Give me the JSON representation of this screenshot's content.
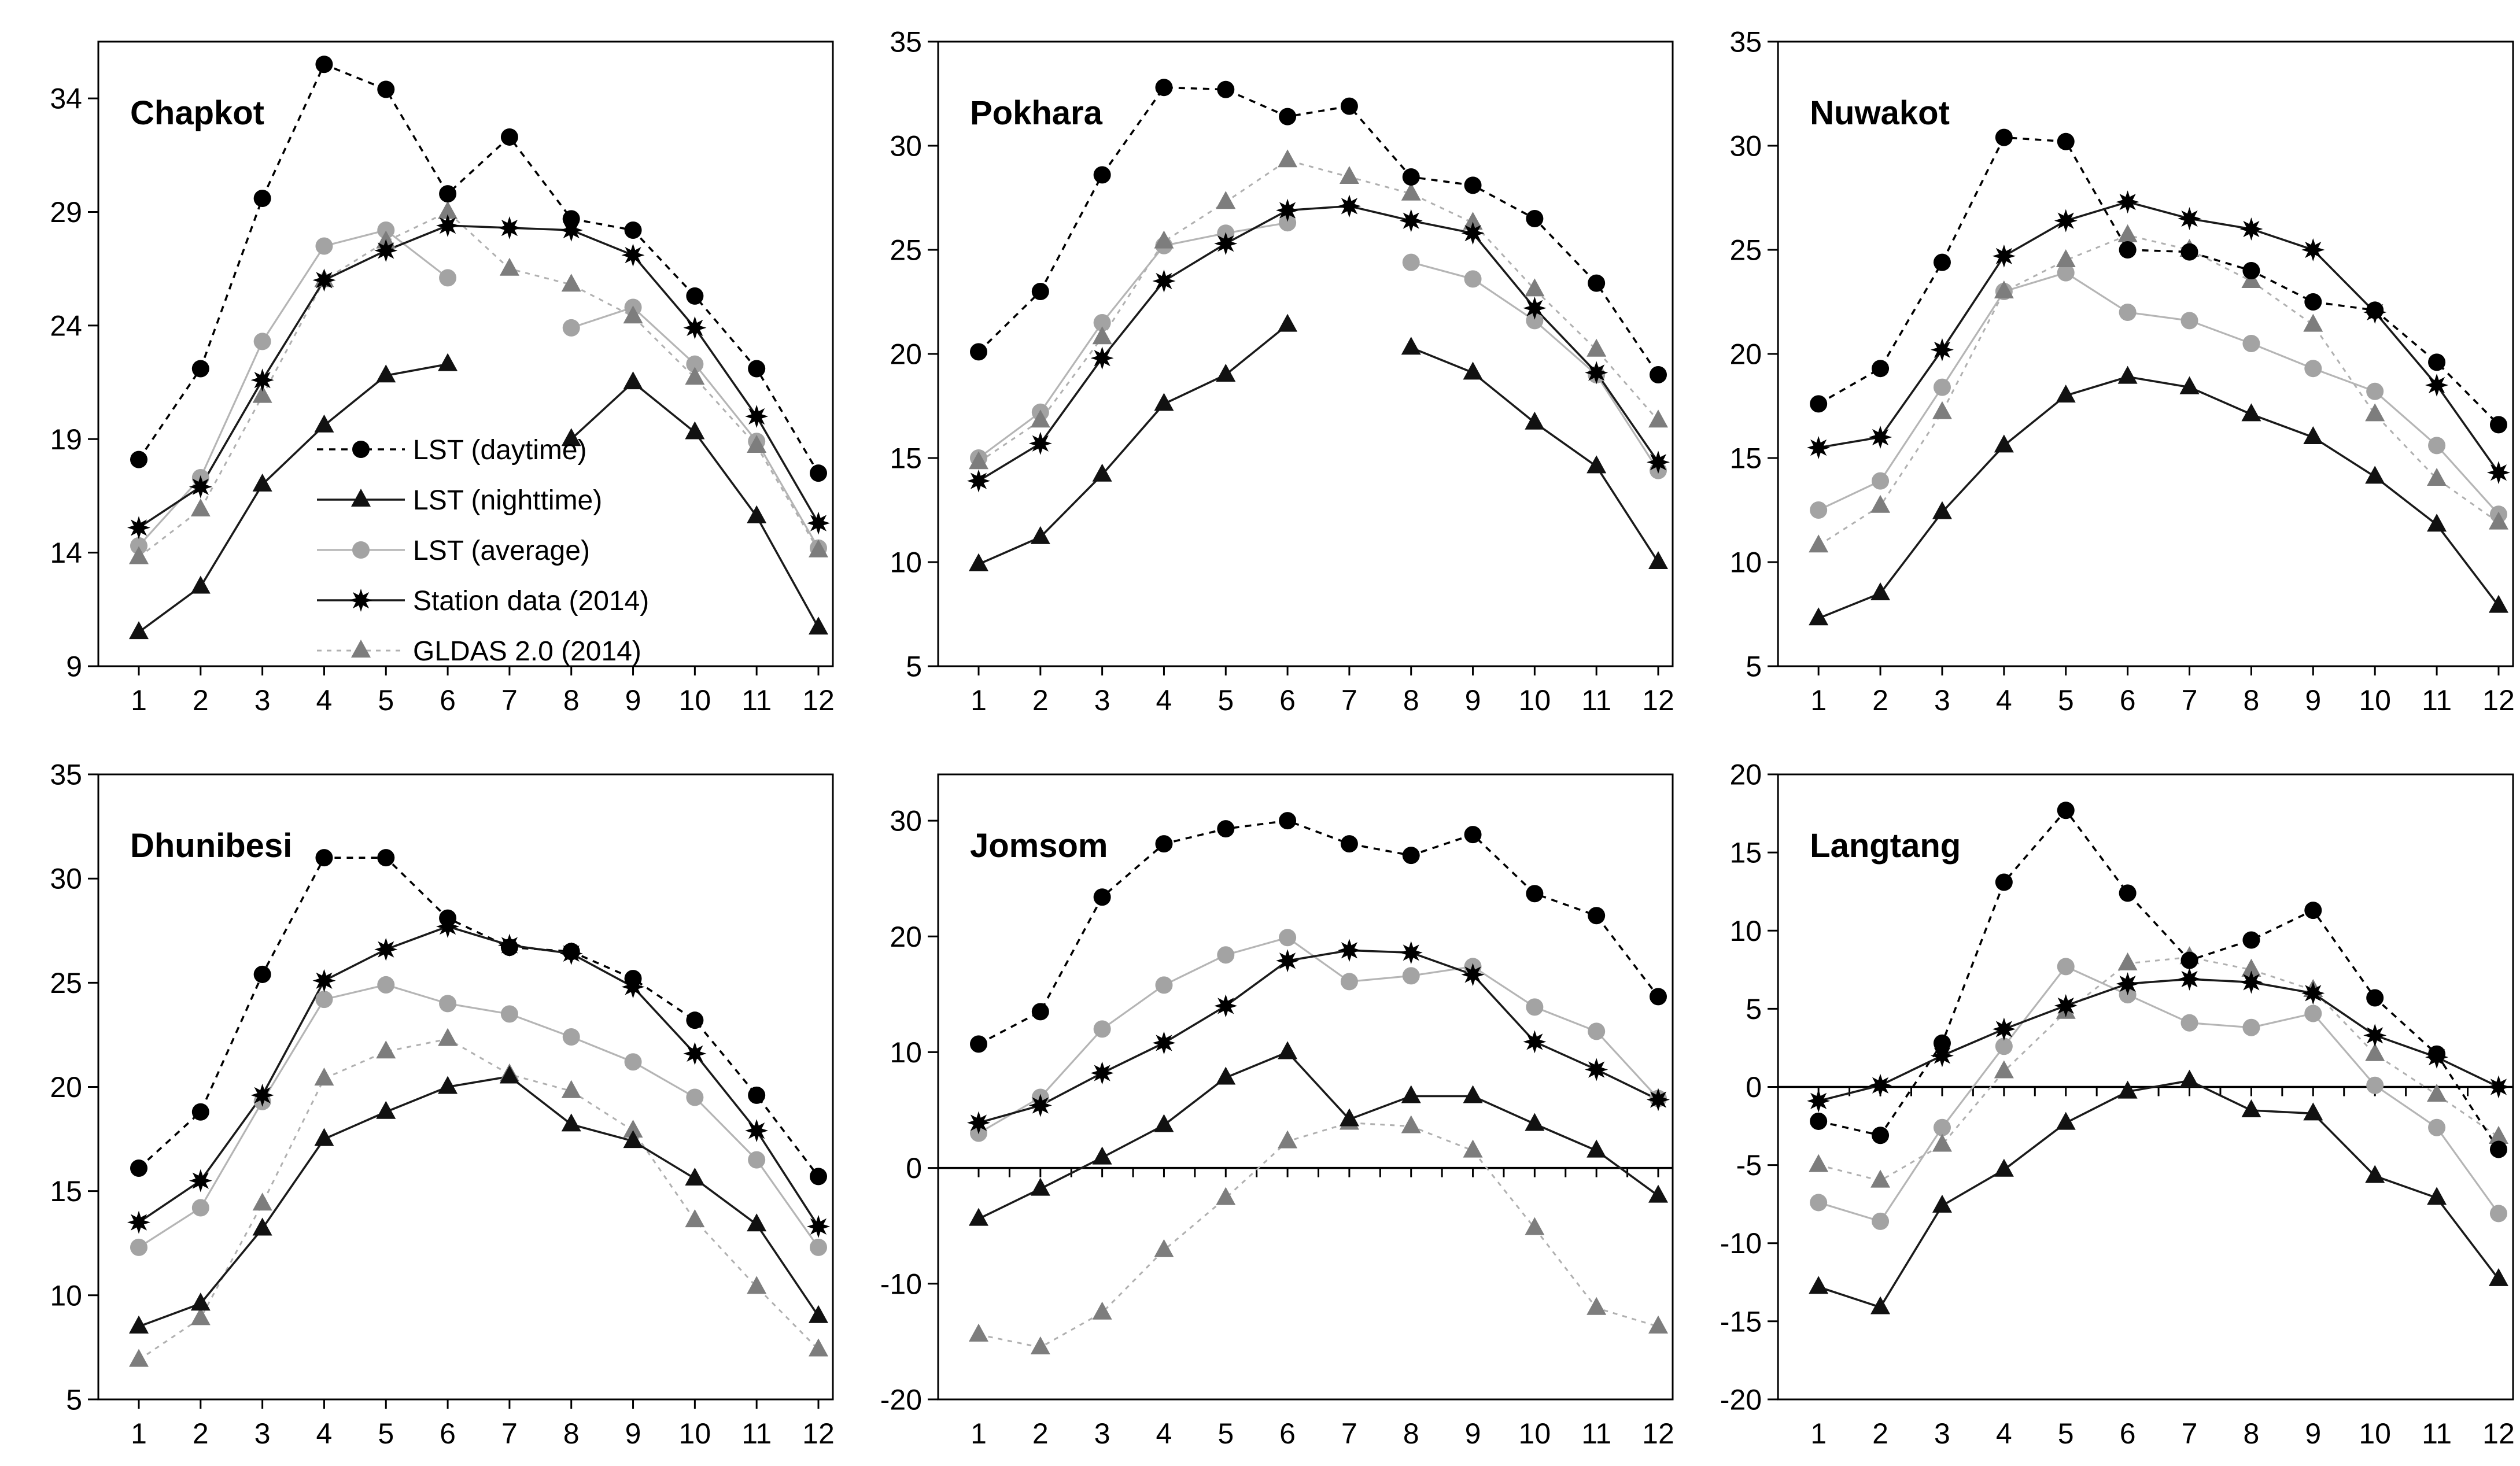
{
  "figure": {
    "background": "#ffffff",
    "rows": 2,
    "cols": 3
  },
  "legend": {
    "position": "inside-first-panel",
    "items": [
      {
        "series": "daytime",
        "label": "LST (daytime)"
      },
      {
        "series": "nighttime",
        "label": "LST (nighttime)"
      },
      {
        "series": "average",
        "label": "LST (average)"
      },
      {
        "series": "station",
        "label": "Station data (2014)"
      },
      {
        "series": "gldas",
        "label": "GLDAS 2.0 (2014)"
      }
    ]
  },
  "series_styles": {
    "daytime": {
      "line_color": "#000000",
      "line": "dashed",
      "marker": "circle",
      "marker_color": "#000000"
    },
    "nighttime": {
      "line_color": "#1a1a1a",
      "line": "solid",
      "marker": "triangle",
      "marker_color": "#111111"
    },
    "average": {
      "line_color": "#b5b5b5",
      "line": "solid",
      "marker": "circle",
      "marker_color": "#a3a3a3"
    },
    "station": {
      "line_color": "#1a1a1a",
      "line": "solid",
      "marker": "star8",
      "marker_color": "#000000"
    },
    "gldas": {
      "line_color": "#b0b0b0",
      "line": "dashed",
      "marker": "triangle",
      "marker_color": "#7d7d7d"
    }
  },
  "chart_data": {
    "type": "line",
    "x_axis_label": "",
    "y_axis_label": "",
    "months": [
      "1",
      "2",
      "3",
      "4",
      "5",
      "6",
      "7",
      "8",
      "9",
      "10",
      "11",
      "12"
    ],
    "grid": false,
    "panels": [
      {
        "title": "Chapkot",
        "ylim": [
          9,
          36.5
        ],
        "yticks": [
          9,
          14,
          19,
          24,
          29,
          34
        ],
        "zero_axis": false,
        "show_legend": true,
        "series": {
          "daytime": [
            18.1,
            22.1,
            29.6,
            35.5,
            34.4,
            29.8,
            32.3,
            28.7,
            28.2,
            25.3,
            22.1,
            17.5
          ],
          "nighttime": [
            10.5,
            12.5,
            17.0,
            19.6,
            21.8,
            22.3,
            null,
            19.0,
            21.5,
            19.3,
            15.6,
            10.7
          ],
          "average": [
            14.3,
            17.3,
            23.3,
            27.5,
            28.2,
            26.1,
            null,
            23.9,
            24.8,
            22.3,
            18.9,
            14.2
          ],
          "station": [
            15.1,
            16.9,
            21.6,
            26.0,
            27.3,
            28.4,
            28.3,
            28.2,
            27.1,
            23.9,
            20.0,
            15.3
          ],
          "gldas": [
            13.8,
            15.9,
            20.9,
            26.0,
            27.7,
            29.0,
            26.5,
            25.8,
            24.4,
            21.7,
            18.7,
            14.1
          ]
        }
      },
      {
        "title": "Pokhara",
        "ylim": [
          5,
          35
        ],
        "yticks": [
          5,
          10,
          15,
          20,
          25,
          30,
          35
        ],
        "zero_axis": false,
        "show_legend": false,
        "series": {
          "daytime": [
            20.1,
            23.0,
            28.6,
            32.8,
            32.7,
            31.4,
            31.9,
            28.5,
            28.1,
            26.5,
            23.4,
            19.0
          ],
          "nighttime": [
            9.9,
            11.2,
            14.2,
            17.6,
            19.0,
            21.4,
            null,
            20.3,
            19.1,
            16.7,
            14.6,
            10.0
          ],
          "average": [
            15.0,
            17.2,
            21.5,
            25.2,
            25.8,
            26.3,
            null,
            24.4,
            23.6,
            21.6,
            19.0,
            14.4
          ],
          "station": [
            13.9,
            15.7,
            19.8,
            23.5,
            25.3,
            26.9,
            27.1,
            26.4,
            25.8,
            22.2,
            19.1,
            14.8
          ],
          "gldas": [
            14.8,
            16.8,
            20.8,
            25.4,
            27.3,
            29.3,
            28.5,
            27.7,
            26.3,
            23.1,
            20.2,
            16.8
          ]
        }
      },
      {
        "title": "Nuwakot",
        "ylim": [
          5,
          35
        ],
        "yticks": [
          5,
          10,
          15,
          20,
          25,
          30,
          35
        ],
        "zero_axis": false,
        "show_legend": false,
        "series": {
          "daytime": [
            17.6,
            19.3,
            24.4,
            30.4,
            30.2,
            25.0,
            24.9,
            24.0,
            22.5,
            22.1,
            19.6,
            16.6
          ],
          "nighttime": [
            7.3,
            8.5,
            12.4,
            15.6,
            18.0,
            18.9,
            18.4,
            17.1,
            16.0,
            14.1,
            11.8,
            7.9
          ],
          "average": [
            12.5,
            13.9,
            18.4,
            23.0,
            23.9,
            22.0,
            21.6,
            20.5,
            19.3,
            18.2,
            15.6,
            12.3
          ],
          "station": [
            15.5,
            16.0,
            20.2,
            24.7,
            26.4,
            27.3,
            26.5,
            26.0,
            25.0,
            22.0,
            18.5,
            14.3
          ],
          "gldas": [
            10.8,
            12.7,
            17.2,
            23.0,
            24.5,
            25.7,
            25.0,
            23.5,
            21.4,
            17.1,
            14.0,
            11.9
          ]
        }
      },
      {
        "title": "Dhunibesi",
        "ylim": [
          5,
          35
        ],
        "yticks": [
          5,
          10,
          15,
          20,
          25,
          30,
          35
        ],
        "zero_axis": false,
        "show_legend": false,
        "series": {
          "daytime": [
            16.1,
            18.8,
            25.4,
            31.0,
            31.0,
            28.1,
            26.7,
            26.5,
            25.2,
            23.2,
            19.6,
            15.7
          ],
          "nighttime": [
            8.5,
            9.6,
            13.2,
            17.5,
            18.8,
            20.0,
            20.5,
            18.2,
            17.4,
            15.6,
            13.4,
            9.0
          ],
          "average": [
            12.3,
            14.2,
            19.3,
            24.2,
            24.9,
            24.0,
            23.5,
            22.4,
            21.2,
            19.5,
            16.5,
            12.3
          ],
          "station": [
            13.5,
            15.5,
            19.6,
            25.1,
            26.6,
            27.7,
            26.8,
            26.4,
            24.8,
            21.6,
            17.9,
            13.3
          ],
          "gldas": [
            6.9,
            8.9,
            14.4,
            20.4,
            21.7,
            22.3,
            20.6,
            19.8,
            17.9,
            13.6,
            10.4,
            7.4
          ]
        }
      },
      {
        "title": "Jomsom",
        "ylim": [
          -20,
          34
        ],
        "yticks": [
          -20,
          -10,
          0,
          10,
          20,
          30
        ],
        "zero_axis": true,
        "show_legend": false,
        "series": {
          "daytime": [
            10.7,
            13.5,
            23.4,
            28.0,
            29.3,
            30.0,
            28.0,
            27.0,
            28.8,
            23.7,
            21.8,
            14.8
          ],
          "nighttime": [
            -4.4,
            -1.8,
            0.9,
            3.7,
            7.8,
            10.0,
            4.2,
            6.2,
            6.2,
            3.8,
            1.5,
            -2.4
          ],
          "average": [
            3.0,
            6.1,
            12.0,
            15.8,
            18.4,
            19.9,
            16.1,
            16.6,
            17.4,
            13.9,
            11.8,
            6.0
          ],
          "station": [
            3.9,
            5.4,
            8.2,
            10.8,
            14.0,
            17.9,
            18.8,
            18.6,
            16.7,
            10.9,
            8.5,
            5.9
          ],
          "gldas": [
            -14.4,
            -15.5,
            -12.5,
            -7.1,
            -2.6,
            2.3,
            3.9,
            3.6,
            1.5,
            -5.2,
            -12.1,
            -13.7
          ]
        }
      },
      {
        "title": "Langtang",
        "ylim": [
          -20,
          20
        ],
        "yticks": [
          -20,
          -15,
          -10,
          -5,
          0,
          5,
          10,
          15,
          20
        ],
        "zero_axis": true,
        "show_legend": false,
        "series": {
          "daytime": [
            -2.2,
            -3.1,
            2.8,
            13.1,
            17.7,
            12.4,
            8.1,
            9.4,
            11.3,
            5.7,
            2.1,
            -4.0
          ],
          "nighttime": [
            -12.8,
            -14.1,
            -7.6,
            -5.3,
            -2.3,
            -0.3,
            0.4,
            -1.5,
            -1.7,
            -5.7,
            -7.1,
            -12.3
          ],
          "average": [
            -7.4,
            -8.6,
            -2.6,
            2.6,
            7.7,
            5.9,
            4.1,
            3.8,
            4.7,
            0.1,
            -2.6,
            -8.1
          ],
          "station": [
            -0.9,
            0.1,
            2.0,
            3.7,
            5.2,
            6.6,
            6.9,
            6.7,
            6.0,
            3.3,
            1.9,
            0.0
          ],
          "gldas": [
            -5.0,
            -6.0,
            -3.7,
            1.0,
            4.8,
            7.9,
            8.3,
            7.5,
            6.2,
            2.1,
            -0.5,
            -3.2
          ]
        }
      }
    ]
  }
}
